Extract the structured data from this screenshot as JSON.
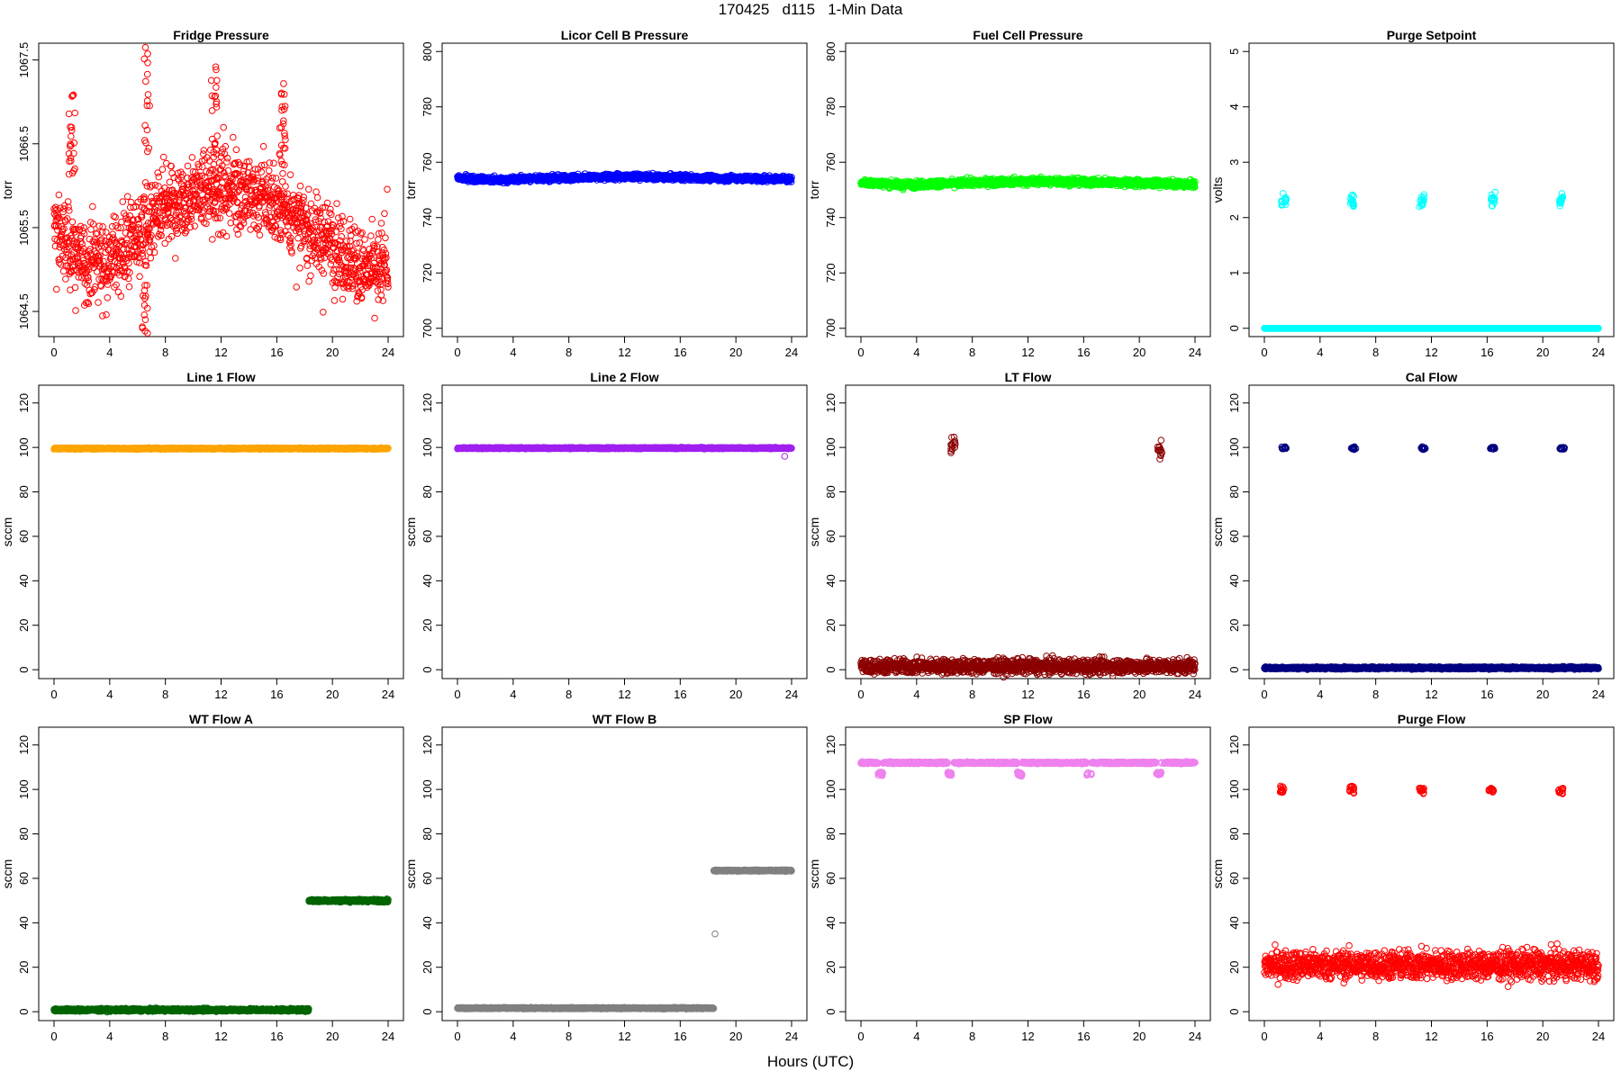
{
  "page": {
    "title": "170425   d115   1-Min Data",
    "xlabel": "Hours (UTC)"
  },
  "chart_data": [
    {
      "id": "fridge",
      "type": "scatter",
      "title": "Fridge Pressure",
      "ylabel": "torr",
      "color": "#ff0000",
      "marker": "open-circle",
      "xlim": [
        0,
        24
      ],
      "ylim": [
        1064.2,
        1067.7
      ],
      "xticks": [
        0,
        4,
        8,
        12,
        16,
        20,
        24
      ],
      "yticks": [
        1064.5,
        1065.5,
        1066.5,
        1067.5
      ],
      "ytick_labels": [
        "1064.5",
        "1065.5",
        "1066.5",
        "1067.5"
      ],
      "profile": {
        "x": [
          0,
          2,
          4,
          6,
          8,
          10,
          12,
          14,
          16,
          18,
          20,
          22,
          24
        ],
        "y": [
          1065.5,
          1065.1,
          1065.1,
          1065.4,
          1065.7,
          1065.9,
          1066.0,
          1065.9,
          1065.8,
          1065.5,
          1065.3,
          1065.0,
          1065.0
        ]
      },
      "noise": 0.22,
      "spikes": [
        {
          "x": 1.3,
          "y": 1066.7
        },
        {
          "x": 6.7,
          "y": 1067.3
        },
        {
          "x": 11.5,
          "y": 1067.2
        },
        {
          "x": 16.4,
          "y": 1066.9
        },
        {
          "x": 6.5,
          "y": 1064.4
        }
      ]
    },
    {
      "id": "licor",
      "type": "scatter",
      "title": "Licor Cell B Pressure",
      "ylabel": "torr",
      "color": "#0000ff",
      "marker": "open-circle",
      "xlim": [
        0,
        24
      ],
      "ylim": [
        697,
        803
      ],
      "xticks": [
        0,
        4,
        8,
        12,
        16,
        20,
        24
      ],
      "yticks": [
        700,
        720,
        740,
        760,
        780,
        800
      ],
      "profile": {
        "x": [
          0,
          3,
          6,
          9,
          12,
          16,
          20,
          24
        ],
        "y": [
          754.3,
          753.6,
          754.2,
          754.5,
          754.8,
          754.5,
          754.2,
          753.9
        ]
      },
      "noise": 0.5
    },
    {
      "id": "fuelcell",
      "type": "scatter",
      "title": "Fuel Cell Pressure",
      "ylabel": "torr",
      "color": "#00ff00",
      "marker": "open-circle",
      "xlim": [
        0,
        24
      ],
      "ylim": [
        697,
        803
      ],
      "xticks": [
        0,
        4,
        8,
        12,
        16,
        20,
        24
      ],
      "yticks": [
        700,
        720,
        740,
        760,
        780,
        800
      ],
      "profile": {
        "x": [
          0,
          3,
          6,
          9,
          12,
          16,
          20,
          24
        ],
        "y": [
          752.8,
          751.8,
          752.2,
          752.8,
          753.1,
          752.9,
          752.5,
          752.0
        ]
      },
      "noise": 0.6
    },
    {
      "id": "purgesp",
      "type": "scatter",
      "title": "Purge Setpoint",
      "ylabel": "volts",
      "color": "#00ffff",
      "marker": "open-circle",
      "xlim": [
        0,
        24
      ],
      "ylim": [
        -0.15,
        5.15
      ],
      "xticks": [
        0,
        4,
        8,
        12,
        16,
        20,
        24
      ],
      "yticks": [
        0,
        1,
        2,
        3,
        4,
        5
      ],
      "baseline": 0,
      "noise": 0,
      "events": {
        "x": [
          1.4,
          6.3,
          11.3,
          16.4,
          21.3
        ],
        "y": 2.32,
        "spread": 0.06
      }
    },
    {
      "id": "line1",
      "type": "scatter",
      "title": "Line 1 Flow",
      "ylabel": "sccm",
      "color": "#ffa500",
      "marker": "open-circle",
      "xlim": [
        0,
        24
      ],
      "ylim": [
        -4,
        128
      ],
      "xticks": [
        0,
        4,
        8,
        12,
        16,
        20,
        24
      ],
      "yticks": [
        0,
        20,
        40,
        60,
        80,
        100,
        120
      ],
      "baseline": 99.5,
      "noise": 0.15
    },
    {
      "id": "line2",
      "type": "scatter",
      "title": "Line 2 Flow",
      "ylabel": "sccm",
      "color": "#a020f0",
      "marker": "open-circle",
      "xlim": [
        0,
        24
      ],
      "ylim": [
        -4,
        128
      ],
      "xticks": [
        0,
        4,
        8,
        12,
        16,
        20,
        24
      ],
      "yticks": [
        0,
        20,
        40,
        60,
        80,
        100,
        120
      ],
      "baseline": 99.7,
      "noise": 0.15,
      "extra_points": [
        {
          "x": 23.5,
          "y": 96
        }
      ]
    },
    {
      "id": "ltflow",
      "type": "scatter",
      "title": "LT Flow",
      "ylabel": "sccm",
      "color": "#8b0000",
      "marker": "open-circle",
      "xlim": [
        0,
        24
      ],
      "ylim": [
        -4,
        128
      ],
      "xticks": [
        0,
        4,
        8,
        12,
        16,
        20,
        24
      ],
      "yticks": [
        0,
        20,
        40,
        60,
        80,
        100,
        120
      ],
      "baseline": 1.5,
      "noise": 1.6,
      "events": {
        "x": [
          6.6,
          21.5
        ],
        "y": 100,
        "spread": 2.2
      }
    },
    {
      "id": "calflow",
      "type": "scatter",
      "title": "Cal Flow",
      "ylabel": "sccm",
      "color": "#000080",
      "marker": "open-circle",
      "xlim": [
        0,
        24
      ],
      "ylim": [
        -4,
        128
      ],
      "xticks": [
        0,
        4,
        8,
        12,
        16,
        20,
        24
      ],
      "yticks": [
        0,
        20,
        40,
        60,
        80,
        100,
        120
      ],
      "baseline": 0.8,
      "noise": 0.25,
      "events": {
        "x": [
          1.4,
          6.4,
          11.4,
          16.4,
          21.4
        ],
        "y": 99.7,
        "spread": 0.3
      }
    },
    {
      "id": "wtflowa",
      "type": "scatter",
      "title": "WT Flow A",
      "ylabel": "sccm",
      "color": "#006400",
      "marker": "open-circle",
      "xlim": [
        0,
        24
      ],
      "ylim": [
        -4,
        128
      ],
      "xticks": [
        0,
        4,
        8,
        12,
        16,
        20,
        24
      ],
      "yticks": [
        0,
        20,
        40,
        60,
        80,
        100,
        120
      ],
      "segments": [
        {
          "x0": 0,
          "x1": 18.3,
          "y": 0.8
        },
        {
          "x0": 18.3,
          "x1": 24,
          "y": 50
        }
      ],
      "noise": 0.3
    },
    {
      "id": "wtflowb",
      "type": "scatter",
      "title": "WT Flow B",
      "ylabel": "sccm",
      "color": "#808080",
      "marker": "open-circle",
      "xlim": [
        0,
        24
      ],
      "ylim": [
        -4,
        128
      ],
      "xticks": [
        0,
        4,
        8,
        12,
        16,
        20,
        24
      ],
      "yticks": [
        0,
        20,
        40,
        60,
        80,
        100,
        120
      ],
      "segments": [
        {
          "x0": 0,
          "x1": 18.4,
          "y": 1.6
        },
        {
          "x0": 18.4,
          "x1": 24,
          "y": 63.5
        }
      ],
      "noise": 0.15,
      "extra_points": [
        {
          "x": 18.5,
          "y": 35
        }
      ]
    },
    {
      "id": "spflow",
      "type": "scatter",
      "title": "SP Flow",
      "ylabel": "sccm",
      "color": "#ee82ee",
      "marker": "open-circle",
      "xlim": [
        0,
        24
      ],
      "ylim": [
        -4,
        128
      ],
      "xticks": [
        0,
        4,
        8,
        12,
        16,
        20,
        24
      ],
      "yticks": [
        0,
        20,
        40,
        60,
        80,
        100,
        120
      ],
      "baseline": 112,
      "noise": 0.2,
      "dips": {
        "x": [
          1.4,
          6.4,
          11.4,
          16.4,
          21.4
        ],
        "y": 107,
        "width": 0.35
      },
      "gaps": [
        6.6,
        16.4,
        21.7
      ]
    },
    {
      "id": "purgeflow",
      "type": "scatter",
      "title": "Purge Flow",
      "ylabel": "sccm",
      "color": "#ff0000",
      "marker": "open-circle",
      "xlim": [
        0,
        24
      ],
      "ylim": [
        -4,
        128
      ],
      "xticks": [
        0,
        4,
        8,
        12,
        16,
        20,
        24
      ],
      "yticks": [
        0,
        20,
        40,
        60,
        80,
        100,
        120
      ],
      "baseline": 21,
      "noise": 3.2,
      "events": {
        "x": [
          1.3,
          6.3,
          11.3,
          16.3,
          21.3
        ],
        "y": 99.6,
        "spread": 0.7
      }
    }
  ]
}
